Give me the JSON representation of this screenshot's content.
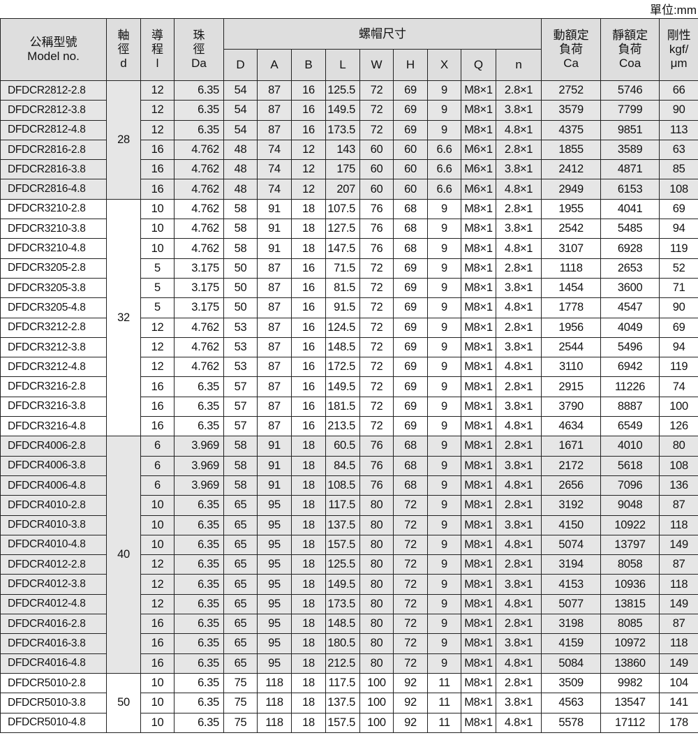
{
  "unit_label": "單位:mm",
  "header": {
    "model": [
      "公稱型號",
      "Model no."
    ],
    "d": [
      "軸",
      "徑",
      "d"
    ],
    "lead": [
      "導",
      "程",
      "l"
    ],
    "da": [
      "珠",
      "徑",
      "Da"
    ],
    "nut_dims": "螺帽尺寸",
    "nut_cols": [
      "D",
      "A",
      "B",
      "L",
      "W",
      "H",
      "X",
      "Q",
      "n"
    ],
    "ca": [
      "動額定",
      "負荷",
      "Ca"
    ],
    "coa": [
      "靜額定",
      "負荷",
      "Coa"
    ],
    "rigidity": [
      "剛性",
      "kgf/",
      "μm"
    ]
  },
  "groups": [
    {
      "d": "28",
      "shaded": true,
      "rows": [
        [
          "DFDCR2812-2.8",
          "12",
          "6.35",
          "54",
          "87",
          "16",
          "125.5",
          "72",
          "69",
          "9",
          "M8×1",
          "2.8×1",
          "2752",
          "5746",
          "66"
        ],
        [
          "DFDCR2812-3.8",
          "12",
          "6.35",
          "54",
          "87",
          "16",
          "149.5",
          "72",
          "69",
          "9",
          "M8×1",
          "3.8×1",
          "3579",
          "7799",
          "90"
        ],
        [
          "DFDCR2812-4.8",
          "12",
          "6.35",
          "54",
          "87",
          "16",
          "173.5",
          "72",
          "69",
          "9",
          "M8×1",
          "4.8×1",
          "4375",
          "9851",
          "113"
        ],
        [
          "DFDCR2816-2.8",
          "16",
          "4.762",
          "48",
          "74",
          "12",
          "143",
          "60",
          "60",
          "6.6",
          "M6×1",
          "2.8×1",
          "1855",
          "3589",
          "63"
        ],
        [
          "DFDCR2816-3.8",
          "16",
          "4.762",
          "48",
          "74",
          "12",
          "175",
          "60",
          "60",
          "6.6",
          "M6×1",
          "3.8×1",
          "2412",
          "4871",
          "85"
        ],
        [
          "DFDCR2816-4.8",
          "16",
          "4.762",
          "48",
          "74",
          "12",
          "207",
          "60",
          "60",
          "6.6",
          "M6×1",
          "4.8×1",
          "2949",
          "6153",
          "108"
        ]
      ]
    },
    {
      "d": "32",
      "shaded": false,
      "rows": [
        [
          "DFDCR3210-2.8",
          "10",
          "4.762",
          "58",
          "91",
          "18",
          "107.5",
          "76",
          "68",
          "9",
          "M8×1",
          "2.8×1",
          "1955",
          "4041",
          "69"
        ],
        [
          "DFDCR3210-3.8",
          "10",
          "4.762",
          "58",
          "91",
          "18",
          "127.5",
          "76",
          "68",
          "9",
          "M8×1",
          "3.8×1",
          "2542",
          "5485",
          "94"
        ],
        [
          "DFDCR3210-4.8",
          "10",
          "4.762",
          "58",
          "91",
          "18",
          "147.5",
          "76",
          "68",
          "9",
          "M8×1",
          "4.8×1",
          "3107",
          "6928",
          "119"
        ],
        [
          "DFDCR3205-2.8",
          "5",
          "3.175",
          "50",
          "87",
          "16",
          "71.5",
          "72",
          "69",
          "9",
          "M8×1",
          "2.8×1",
          "1118",
          "2653",
          "52"
        ],
        [
          "DFDCR3205-3.8",
          "5",
          "3.175",
          "50",
          "87",
          "16",
          "81.5",
          "72",
          "69",
          "9",
          "M8×1",
          "3.8×1",
          "1454",
          "3600",
          "71"
        ],
        [
          "DFDCR3205-4.8",
          "5",
          "3.175",
          "50",
          "87",
          "16",
          "91.5",
          "72",
          "69",
          "9",
          "M8×1",
          "4.8×1",
          "1778",
          "4547",
          "90"
        ],
        [
          "DFDCR3212-2.8",
          "12",
          "4.762",
          "53",
          "87",
          "16",
          "124.5",
          "72",
          "69",
          "9",
          "M8×1",
          "2.8×1",
          "1956",
          "4049",
          "69"
        ],
        [
          "DFDCR3212-3.8",
          "12",
          "4.762",
          "53",
          "87",
          "16",
          "148.5",
          "72",
          "69",
          "9",
          "M8×1",
          "3.8×1",
          "2544",
          "5496",
          "94"
        ],
        [
          "DFDCR3212-4.8",
          "12",
          "4.762",
          "53",
          "87",
          "16",
          "172.5",
          "72",
          "69",
          "9",
          "M8×1",
          "4.8×1",
          "3110",
          "6942",
          "119"
        ],
        [
          "DFDCR3216-2.8",
          "16",
          "6.35",
          "57",
          "87",
          "16",
          "149.5",
          "72",
          "69",
          "9",
          "M8×1",
          "2.8×1",
          "2915",
          "11226",
          "74"
        ],
        [
          "DFDCR3216-3.8",
          "16",
          "6.35",
          "57",
          "87",
          "16",
          "181.5",
          "72",
          "69",
          "9",
          "M8×1",
          "3.8×1",
          "3790",
          "8887",
          "100"
        ],
        [
          "DFDCR3216-4.8",
          "16",
          "6.35",
          "57",
          "87",
          "16",
          "213.5",
          "72",
          "69",
          "9",
          "M8×1",
          "4.8×1",
          "4634",
          "6549",
          "126"
        ]
      ]
    },
    {
      "d": "40",
      "shaded": true,
      "rows": [
        [
          "DFDCR4006-2.8",
          "6",
          "3.969",
          "58",
          "91",
          "18",
          "60.5",
          "76",
          "68",
          "9",
          "M8×1",
          "2.8×1",
          "1671",
          "4010",
          "80"
        ],
        [
          "DFDCR4006-3.8",
          "6",
          "3.969",
          "58",
          "91",
          "18",
          "84.5",
          "76",
          "68",
          "9",
          "M8×1",
          "3.8×1",
          "2172",
          "5618",
          "108"
        ],
        [
          "DFDCR4006-4.8",
          "6",
          "3.969",
          "58",
          "91",
          "18",
          "108.5",
          "76",
          "68",
          "9",
          "M8×1",
          "4.8×1",
          "2656",
          "7096",
          "136"
        ],
        [
          "DFDCR4010-2.8",
          "10",
          "6.35",
          "65",
          "95",
          "18",
          "117.5",
          "80",
          "72",
          "9",
          "M8×1",
          "2.8×1",
          "3192",
          "9048",
          "87"
        ],
        [
          "DFDCR4010-3.8",
          "10",
          "6.35",
          "65",
          "95",
          "18",
          "137.5",
          "80",
          "72",
          "9",
          "M8×1",
          "3.8×1",
          "4150",
          "10922",
          "118"
        ],
        [
          "DFDCR4010-4.8",
          "10",
          "6.35",
          "65",
          "95",
          "18",
          "157.5",
          "80",
          "72",
          "9",
          "M8×1",
          "4.8×1",
          "5074",
          "13797",
          "149"
        ],
        [
          "DFDCR4012-2.8",
          "12",
          "6.35",
          "65",
          "95",
          "18",
          "125.5",
          "80",
          "72",
          "9",
          "M8×1",
          "2.8×1",
          "3194",
          "8058",
          "87"
        ],
        [
          "DFDCR4012-3.8",
          "12",
          "6.35",
          "65",
          "95",
          "18",
          "149.5",
          "80",
          "72",
          "9",
          "M8×1",
          "3.8×1",
          "4153",
          "10936",
          "118"
        ],
        [
          "DFDCR4012-4.8",
          "12",
          "6.35",
          "65",
          "95",
          "18",
          "173.5",
          "80",
          "72",
          "9",
          "M8×1",
          "4.8×1",
          "5077",
          "13815",
          "149"
        ],
        [
          "DFDCR4016-2.8",
          "16",
          "6.35",
          "65",
          "95",
          "18",
          "148.5",
          "80",
          "72",
          "9",
          "M8×1",
          "2.8×1",
          "3198",
          "8085",
          "87"
        ],
        [
          "DFDCR4016-3.8",
          "16",
          "6.35",
          "65",
          "95",
          "18",
          "180.5",
          "80",
          "72",
          "9",
          "M8×1",
          "3.8×1",
          "4159",
          "10972",
          "118"
        ],
        [
          "DFDCR4016-4.8",
          "16",
          "6.35",
          "65",
          "95",
          "18",
          "212.5",
          "80",
          "72",
          "9",
          "M8×1",
          "4.8×1",
          "5084",
          "13860",
          "149"
        ]
      ]
    },
    {
      "d": "50",
      "shaded": false,
      "rows": [
        [
          "DFDCR5010-2.8",
          "10",
          "6.35",
          "75",
          "118",
          "18",
          "117.5",
          "100",
          "92",
          "11",
          "M8×1",
          "2.8×1",
          "3509",
          "9982",
          "104"
        ],
        [
          "DFDCR5010-3.8",
          "10",
          "6.35",
          "75",
          "118",
          "18",
          "137.5",
          "100",
          "92",
          "11",
          "M8×1",
          "3.8×1",
          "4563",
          "13547",
          "141"
        ],
        [
          "DFDCR5010-4.8",
          "10",
          "6.35",
          "75",
          "118",
          "18",
          "157.5",
          "100",
          "92",
          "11",
          "M8×1",
          "4.8×1",
          "5578",
          "17112",
          "178"
        ]
      ]
    }
  ]
}
